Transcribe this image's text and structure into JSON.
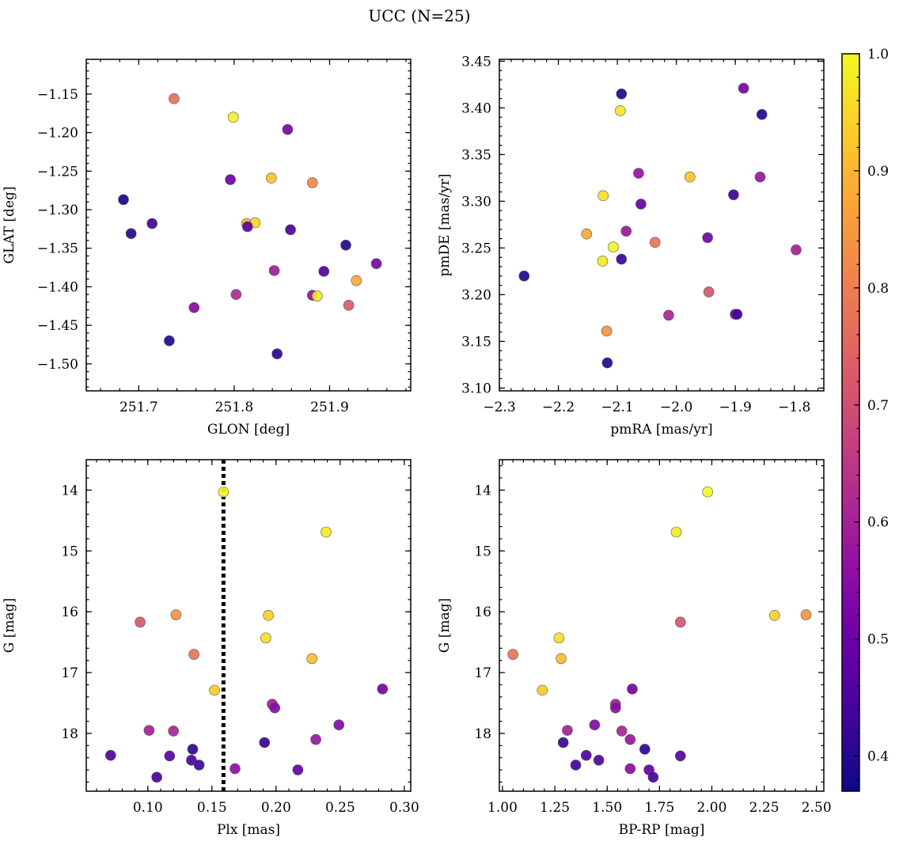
{
  "title": "UCC (N=25)",
  "colorbar": {
    "min": 0.37,
    "max": 1.0,
    "cmap": "plasma",
    "ticks": [
      0.4,
      0.5,
      0.6,
      0.7,
      0.8,
      0.9,
      1.0
    ],
    "tick_labels": [
      "0.4",
      "0.5",
      "0.6",
      "0.7",
      "0.8",
      "0.9",
      "1.0"
    ]
  },
  "chart_data": [
    {
      "type": "scatter",
      "id": "glon-glat",
      "xlabel": "GLON [deg]",
      "ylabel": "GLAT [deg]",
      "xlim": [
        251.645,
        251.985
      ],
      "ylim": [
        -1.535,
        -1.105
      ],
      "invert_y": false,
      "xticks": [
        251.7,
        251.8,
        251.9
      ],
      "xtick_labels": [
        "251.7",
        "251.8",
        "251.9"
      ],
      "xminor": 0.02,
      "yticks": [
        -1.5,
        -1.45,
        -1.4,
        -1.35,
        -1.3,
        -1.25,
        -1.2,
        -1.15
      ],
      "ytick_labels": [
        "−1.50",
        "−1.45",
        "−1.40",
        "−1.35",
        "−1.30",
        "−1.25",
        "−1.20",
        "−1.15"
      ],
      "yminor": 0.01,
      "points": [
        {
          "x": 251.737,
          "y": -1.156,
          "c": 0.77
        },
        {
          "x": 251.799,
          "y": -1.18,
          "c": 0.99
        },
        {
          "x": 251.856,
          "y": -1.196,
          "c": 0.52
        },
        {
          "x": 251.839,
          "y": -1.259,
          "c": 0.92
        },
        {
          "x": 251.882,
          "y": -1.265,
          "c": 0.82
        },
        {
          "x": 251.796,
          "y": -1.261,
          "c": 0.5
        },
        {
          "x": 251.684,
          "y": -1.287,
          "c": 0.38
        },
        {
          "x": 251.692,
          "y": -1.331,
          "c": 0.4
        },
        {
          "x": 251.714,
          "y": -1.318,
          "c": 0.43
        },
        {
          "x": 251.813,
          "y": -1.318,
          "c": 0.9
        },
        {
          "x": 251.822,
          "y": -1.317,
          "c": 0.95
        },
        {
          "x": 251.814,
          "y": -1.322,
          "c": 0.47
        },
        {
          "x": 251.859,
          "y": -1.326,
          "c": 0.45
        },
        {
          "x": 251.917,
          "y": -1.346,
          "c": 0.4
        },
        {
          "x": 251.949,
          "y": -1.37,
          "c": 0.52
        },
        {
          "x": 251.842,
          "y": -1.379,
          "c": 0.59
        },
        {
          "x": 251.894,
          "y": -1.38,
          "c": 0.46
        },
        {
          "x": 251.928,
          "y": -1.392,
          "c": 0.88
        },
        {
          "x": 251.802,
          "y": -1.41,
          "c": 0.62
        },
        {
          "x": 251.882,
          "y": -1.411,
          "c": 0.57
        },
        {
          "x": 251.887,
          "y": -1.412,
          "c": 0.98
        },
        {
          "x": 251.92,
          "y": -1.424,
          "c": 0.73
        },
        {
          "x": 251.758,
          "y": -1.427,
          "c": 0.55
        },
        {
          "x": 251.732,
          "y": -1.47,
          "c": 0.39
        },
        {
          "x": 251.845,
          "y": -1.487,
          "c": 0.41
        }
      ]
    },
    {
      "type": "scatter",
      "id": "pmra-pmde",
      "xlabel": "pmRA [mas/yr]",
      "ylabel": "pmDE [mas/yr]",
      "xlim": [
        -2.3,
        -1.75
      ],
      "ylim": [
        3.097,
        3.452
      ],
      "invert_y": false,
      "xticks": [
        -2.3,
        -2.2,
        -2.1,
        -2.0,
        -1.9,
        -1.8
      ],
      "xtick_labels": [
        "−2.3",
        "−2.2",
        "−2.1",
        "−2.0",
        "−1.9",
        "−1.8"
      ],
      "xminor": 0.02,
      "yticks": [
        3.1,
        3.15,
        3.2,
        3.25,
        3.3,
        3.35,
        3.4,
        3.45
      ],
      "ytick_labels": [
        "3.10",
        "3.15",
        "3.20",
        "3.25",
        "3.30",
        "3.35",
        "3.40",
        "3.45"
      ],
      "yminor": 0.01,
      "points": [
        {
          "x": -1.886,
          "y": 3.421,
          "c": 0.52
        },
        {
          "x": -2.093,
          "y": 3.415,
          "c": 0.39
        },
        {
          "x": -2.095,
          "y": 3.397,
          "c": 0.97
        },
        {
          "x": -1.855,
          "y": 3.393,
          "c": 0.4
        },
        {
          "x": -2.064,
          "y": 3.33,
          "c": 0.57
        },
        {
          "x": -1.977,
          "y": 3.326,
          "c": 0.92
        },
        {
          "x": -1.858,
          "y": 3.326,
          "c": 0.58
        },
        {
          "x": -2.124,
          "y": 3.306,
          "c": 0.96
        },
        {
          "x": -1.903,
          "y": 3.307,
          "c": 0.42
        },
        {
          "x": -2.06,
          "y": 3.297,
          "c": 0.48
        },
        {
          "x": -2.085,
          "y": 3.268,
          "c": 0.58
        },
        {
          "x": -2.152,
          "y": 3.265,
          "c": 0.88
        },
        {
          "x": -1.947,
          "y": 3.261,
          "c": 0.51
        },
        {
          "x": -2.036,
          "y": 3.256,
          "c": 0.78
        },
        {
          "x": -2.107,
          "y": 3.251,
          "c": 1.0
        },
        {
          "x": -1.797,
          "y": 3.248,
          "c": 0.6
        },
        {
          "x": -2.093,
          "y": 3.238,
          "c": 0.42
        },
        {
          "x": -2.125,
          "y": 3.236,
          "c": 0.98
        },
        {
          "x": -2.258,
          "y": 3.22,
          "c": 0.39
        },
        {
          "x": -1.945,
          "y": 3.203,
          "c": 0.72
        },
        {
          "x": -1.9,
          "y": 3.179,
          "c": 0.49
        },
        {
          "x": -1.897,
          "y": 3.179,
          "c": 0.45
        },
        {
          "x": -2.013,
          "y": 3.178,
          "c": 0.61
        },
        {
          "x": -2.118,
          "y": 3.161,
          "c": 0.84
        },
        {
          "x": -2.117,
          "y": 3.127,
          "c": 0.4
        }
      ]
    },
    {
      "type": "scatter",
      "id": "plx-g",
      "xlabel": "Plx [mas]",
      "ylabel": "G [mag]",
      "xlim": [
        0.052,
        0.305
      ],
      "ylim": [
        13.5,
        18.95
      ],
      "invert_y": true,
      "xticks": [
        0.1,
        0.15,
        0.2,
        0.25,
        0.3
      ],
      "xtick_labels": [
        "0.10",
        "0.15",
        "0.20",
        "0.25",
        "0.30"
      ],
      "xminor": 0.01,
      "yticks": [
        14,
        15,
        16,
        17,
        18
      ],
      "ytick_labels": [
        "14",
        "15",
        "16",
        "17",
        "18"
      ],
      "yminor": 0.2,
      "vline": 0.159,
      "points": [
        {
          "x": 0.159,
          "y": 14.03,
          "c": 1.0
        },
        {
          "x": 0.239,
          "y": 14.69,
          "c": 0.98
        },
        {
          "x": 0.122,
          "y": 16.05,
          "c": 0.84
        },
        {
          "x": 0.194,
          "y": 16.06,
          "c": 0.94
        },
        {
          "x": 0.094,
          "y": 16.17,
          "c": 0.72
        },
        {
          "x": 0.192,
          "y": 16.43,
          "c": 0.96
        },
        {
          "x": 0.136,
          "y": 16.7,
          "c": 0.78
        },
        {
          "x": 0.228,
          "y": 16.77,
          "c": 0.91
        },
        {
          "x": 0.152,
          "y": 17.29,
          "c": 0.93
        },
        {
          "x": 0.283,
          "y": 17.27,
          "c": 0.51
        },
        {
          "x": 0.197,
          "y": 17.52,
          "c": 0.59
        },
        {
          "x": 0.199,
          "y": 17.58,
          "c": 0.55
        },
        {
          "x": 0.249,
          "y": 17.86,
          "c": 0.54
        },
        {
          "x": 0.101,
          "y": 17.95,
          "c": 0.6
        },
        {
          "x": 0.12,
          "y": 17.96,
          "c": 0.61
        },
        {
          "x": 0.231,
          "y": 18.1,
          "c": 0.58
        },
        {
          "x": 0.191,
          "y": 18.15,
          "c": 0.42
        },
        {
          "x": 0.135,
          "y": 18.26,
          "c": 0.41
        },
        {
          "x": 0.071,
          "y": 18.36,
          "c": 0.46
        },
        {
          "x": 0.117,
          "y": 18.37,
          "c": 0.47
        },
        {
          "x": 0.134,
          "y": 18.44,
          "c": 0.45
        },
        {
          "x": 0.14,
          "y": 18.52,
          "c": 0.43
        },
        {
          "x": 0.168,
          "y": 18.58,
          "c": 0.56
        },
        {
          "x": 0.217,
          "y": 18.6,
          "c": 0.49
        },
        {
          "x": 0.107,
          "y": 18.72,
          "c": 0.44
        }
      ]
    },
    {
      "type": "scatter",
      "id": "bprp-g",
      "xlabel": "BP-RP [mag]",
      "ylabel": "G [mag]",
      "xlim": [
        0.985,
        2.535
      ],
      "ylim": [
        13.5,
        18.95
      ],
      "invert_y": true,
      "xticks": [
        1.0,
        1.25,
        1.5,
        1.75,
        2.0,
        2.25,
        2.5
      ],
      "xtick_labels": [
        "1.00",
        "1.25",
        "1.50",
        "1.75",
        "2.00",
        "2.25",
        "2.50"
      ],
      "xminor": 0.05,
      "yticks": [
        14,
        15,
        16,
        17,
        18
      ],
      "ytick_labels": [
        "14",
        "15",
        "16",
        "17",
        "18"
      ],
      "yminor": 0.2,
      "points": [
        {
          "x": 1.98,
          "y": 14.03,
          "c": 1.0
        },
        {
          "x": 1.83,
          "y": 14.69,
          "c": 0.98
        },
        {
          "x": 2.45,
          "y": 16.05,
          "c": 0.84
        },
        {
          "x": 2.3,
          "y": 16.06,
          "c": 0.94
        },
        {
          "x": 1.85,
          "y": 16.17,
          "c": 0.72
        },
        {
          "x": 1.27,
          "y": 16.43,
          "c": 0.96
        },
        {
          "x": 1.05,
          "y": 16.7,
          "c": 0.78
        },
        {
          "x": 1.28,
          "y": 16.77,
          "c": 0.91
        },
        {
          "x": 1.19,
          "y": 17.29,
          "c": 0.93
        },
        {
          "x": 1.62,
          "y": 17.27,
          "c": 0.51
        },
        {
          "x": 1.54,
          "y": 17.52,
          "c": 0.59
        },
        {
          "x": 1.54,
          "y": 17.58,
          "c": 0.55
        },
        {
          "x": 1.44,
          "y": 17.86,
          "c": 0.54
        },
        {
          "x": 1.31,
          "y": 17.95,
          "c": 0.6
        },
        {
          "x": 1.57,
          "y": 17.96,
          "c": 0.61
        },
        {
          "x": 1.61,
          "y": 18.1,
          "c": 0.58
        },
        {
          "x": 1.29,
          "y": 18.15,
          "c": 0.42
        },
        {
          "x": 1.68,
          "y": 18.26,
          "c": 0.41
        },
        {
          "x": 1.4,
          "y": 18.36,
          "c": 0.46
        },
        {
          "x": 1.85,
          "y": 18.37,
          "c": 0.47
        },
        {
          "x": 1.46,
          "y": 18.44,
          "c": 0.45
        },
        {
          "x": 1.35,
          "y": 18.52,
          "c": 0.43
        },
        {
          "x": 1.61,
          "y": 18.58,
          "c": 0.56
        },
        {
          "x": 1.7,
          "y": 18.6,
          "c": 0.49
        },
        {
          "x": 1.72,
          "y": 18.72,
          "c": 0.44
        }
      ]
    }
  ]
}
